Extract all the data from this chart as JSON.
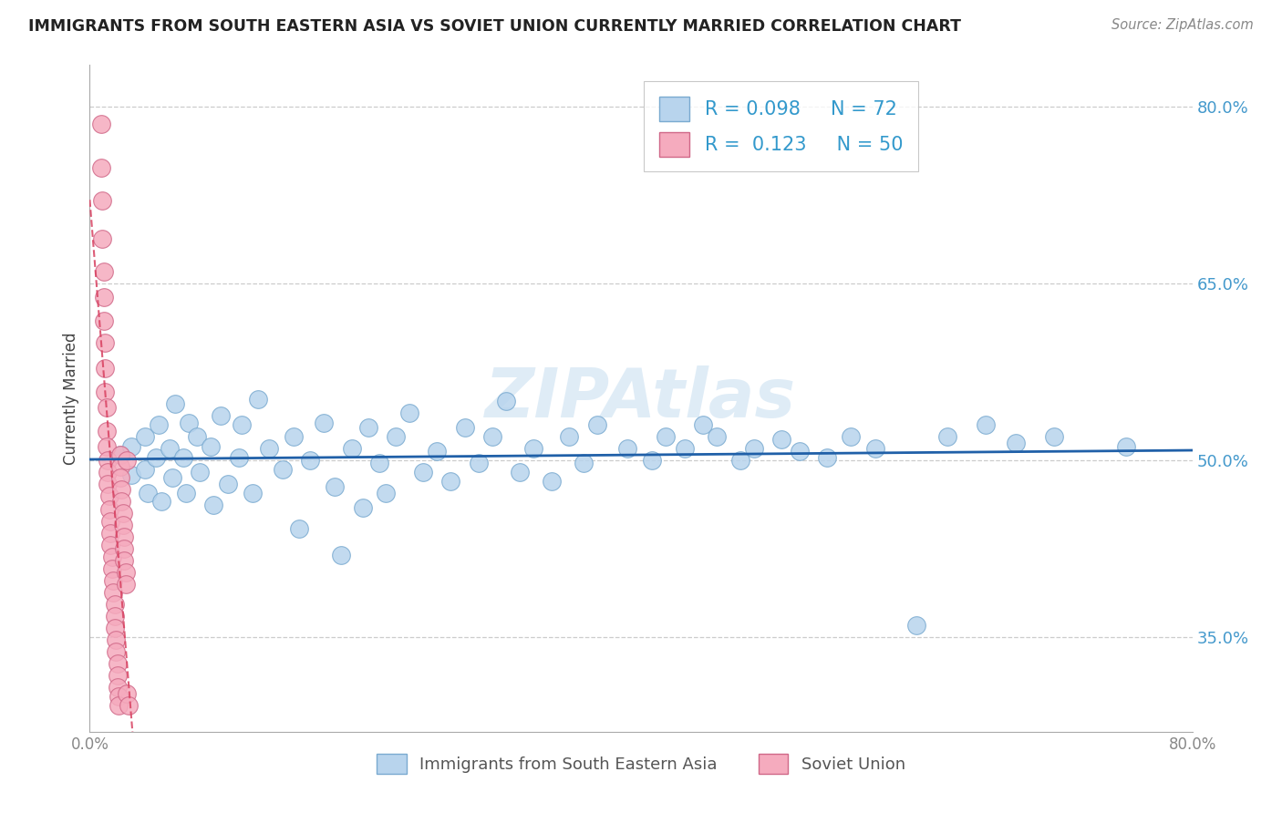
{
  "title": "IMMIGRANTS FROM SOUTH EASTERN ASIA VS SOVIET UNION CURRENTLY MARRIED CORRELATION CHART",
  "source": "Source: ZipAtlas.com",
  "ylabel": "Currently Married",
  "xmin": 0.0,
  "xmax": 0.8,
  "ymin": 0.27,
  "ymax": 0.835,
  "yticks": [
    0.35,
    0.5,
    0.65,
    0.8
  ],
  "ytick_labels": [
    "35.0%",
    "50.0%",
    "65.0%",
    "80.0%"
  ],
  "legend_r1": "R = 0.098",
  "legend_n1": "N = 72",
  "legend_r2": "R =  0.123",
  "legend_n2": "N = 50",
  "blue_color": "#b8d4ed",
  "blue_edge_color": "#7aaad0",
  "pink_color": "#f5abbe",
  "pink_edge_color": "#d06888",
  "blue_line_color": "#2060a8",
  "pink_line_color": "#d84060",
  "watermark": "ZIPAtlas",
  "series1_label": "Immigrants from South Eastern Asia",
  "series2_label": "Soviet Union",
  "blue_scatter_x": [
    0.022,
    0.03,
    0.03,
    0.04,
    0.04,
    0.042,
    0.048,
    0.05,
    0.052,
    0.058,
    0.06,
    0.062,
    0.068,
    0.07,
    0.072,
    0.078,
    0.08,
    0.088,
    0.09,
    0.095,
    0.1,
    0.108,
    0.11,
    0.118,
    0.122,
    0.13,
    0.14,
    0.148,
    0.152,
    0.16,
    0.17,
    0.178,
    0.182,
    0.19,
    0.198,
    0.202,
    0.21,
    0.215,
    0.222,
    0.232,
    0.242,
    0.252,
    0.262,
    0.272,
    0.282,
    0.292,
    0.302,
    0.312,
    0.322,
    0.335,
    0.348,
    0.358,
    0.368,
    0.39,
    0.408,
    0.418,
    0.432,
    0.445,
    0.455,
    0.472,
    0.482,
    0.502,
    0.515,
    0.535,
    0.552,
    0.57,
    0.6,
    0.622,
    0.65,
    0.672,
    0.7,
    0.752
  ],
  "blue_scatter_y": [
    0.505,
    0.512,
    0.488,
    0.492,
    0.52,
    0.472,
    0.502,
    0.53,
    0.465,
    0.51,
    0.485,
    0.548,
    0.502,
    0.472,
    0.532,
    0.52,
    0.49,
    0.512,
    0.462,
    0.538,
    0.48,
    0.502,
    0.53,
    0.472,
    0.552,
    0.51,
    0.492,
    0.52,
    0.442,
    0.5,
    0.532,
    0.478,
    0.42,
    0.51,
    0.46,
    0.528,
    0.498,
    0.472,
    0.52,
    0.54,
    0.49,
    0.508,
    0.482,
    0.528,
    0.498,
    0.52,
    0.55,
    0.49,
    0.51,
    0.482,
    0.52,
    0.498,
    0.53,
    0.51,
    0.5,
    0.52,
    0.51,
    0.53,
    0.52,
    0.5,
    0.51,
    0.518,
    0.508,
    0.502,
    0.52,
    0.51,
    0.36,
    0.52,
    0.53,
    0.515,
    0.52,
    0.512
  ],
  "pink_scatter_x": [
    0.008,
    0.008,
    0.009,
    0.009,
    0.01,
    0.01,
    0.01,
    0.011,
    0.011,
    0.011,
    0.012,
    0.012,
    0.012,
    0.013,
    0.013,
    0.013,
    0.014,
    0.014,
    0.015,
    0.015,
    0.015,
    0.016,
    0.016,
    0.017,
    0.017,
    0.018,
    0.018,
    0.018,
    0.019,
    0.019,
    0.02,
    0.02,
    0.02,
    0.021,
    0.021,
    0.022,
    0.022,
    0.022,
    0.023,
    0.023,
    0.024,
    0.024,
    0.025,
    0.025,
    0.025,
    0.026,
    0.026,
    0.027,
    0.027,
    0.028
  ],
  "pink_scatter_y": [
    0.785,
    0.748,
    0.72,
    0.688,
    0.66,
    0.638,
    0.618,
    0.6,
    0.578,
    0.558,
    0.545,
    0.525,
    0.512,
    0.5,
    0.49,
    0.48,
    0.47,
    0.458,
    0.448,
    0.438,
    0.428,
    0.418,
    0.408,
    0.398,
    0.388,
    0.378,
    0.368,
    0.358,
    0.348,
    0.338,
    0.328,
    0.318,
    0.308,
    0.3,
    0.292,
    0.505,
    0.495,
    0.485,
    0.475,
    0.465,
    0.455,
    0.445,
    0.435,
    0.425,
    0.415,
    0.405,
    0.395,
    0.302,
    0.5,
    0.292
  ]
}
